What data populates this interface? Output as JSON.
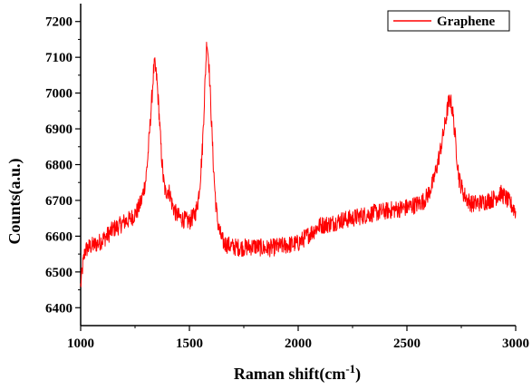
{
  "chart_data": {
    "type": "line",
    "title": "",
    "xlabel": "Raman shift(cm",
    "xlabel_superscript": "-1",
    "xlabel_suffix": ")",
    "ylabel": "Counts(a.u.)",
    "xlim": [
      1000,
      3000
    ],
    "ylim": [
      6350,
      7250
    ],
    "x_ticks": [
      1000,
      1500,
      2000,
      2500,
      3000
    ],
    "x_tick_labels": [
      "1000",
      "1500",
      "2000",
      "2500",
      "3000"
    ],
    "y_ticks": [
      6400,
      6500,
      6600,
      6700,
      6800,
      6900,
      7000,
      7100,
      7200
    ],
    "y_tick_labels": [
      "6400",
      "6500",
      "6600",
      "6700",
      "6800",
      "6900",
      "7000",
      "7100",
      "7200"
    ],
    "grid": false,
    "legend_position": "top-right",
    "series": [
      {
        "name": "Graphene",
        "color": "#ff0000",
        "x": [
          1000,
          1010,
          1020,
          1040,
          1060,
          1080,
          1100,
          1120,
          1150,
          1180,
          1200,
          1220,
          1240,
          1260,
          1280,
          1300,
          1310,
          1320,
          1330,
          1335,
          1340,
          1350,
          1360,
          1370,
          1380,
          1390,
          1400,
          1410,
          1420,
          1440,
          1460,
          1480,
          1500,
          1510,
          1520,
          1530,
          1540,
          1550,
          1560,
          1570,
          1580,
          1590,
          1600,
          1610,
          1620,
          1630,
          1640,
          1650,
          1660,
          1680,
          1700,
          1750,
          1800,
          1850,
          1900,
          1950,
          2000,
          2050,
          2100,
          2150,
          2200,
          2250,
          2300,
          2350,
          2400,
          2450,
          2500,
          2550,
          2580,
          2600,
          2620,
          2640,
          2660,
          2680,
          2690,
          2700,
          2710,
          2720,
          2730,
          2740,
          2760,
          2780,
          2800,
          2850,
          2900,
          2930,
          2950,
          2970,
          3000
        ],
        "y": [
          6460,
          6520,
          6560,
          6570,
          6575,
          6580,
          6590,
          6600,
          6620,
          6630,
          6640,
          6645,
          6655,
          6670,
          6700,
          6760,
          6830,
          6920,
          7010,
          7060,
          7080,
          7040,
          6950,
          6840,
          6760,
          6720,
          6730,
          6720,
          6690,
          6660,
          6650,
          6645,
          6640,
          6650,
          6655,
          6670,
          6700,
          6760,
          6850,
          7000,
          7150,
          7080,
          6940,
          6800,
          6700,
          6640,
          6610,
          6590,
          6580,
          6575,
          6570,
          6568,
          6572,
          6565,
          6570,
          6575,
          6580,
          6605,
          6630,
          6635,
          6645,
          6650,
          6658,
          6665,
          6670,
          6675,
          6680,
          6690,
          6700,
          6720,
          6750,
          6800,
          6860,
          6930,
          6970,
          6980,
          6950,
          6890,
          6820,
          6760,
          6720,
          6700,
          6690,
          6695,
          6705,
          6720,
          6710,
          6695,
          6670
        ]
      }
    ]
  }
}
